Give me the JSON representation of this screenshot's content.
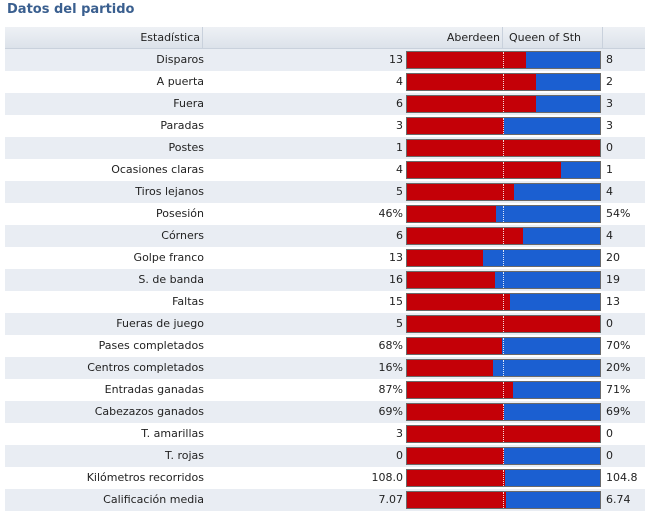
{
  "title": "Datos del partido",
  "header": {
    "stat": "Estadística",
    "home": "Aberdeen",
    "away": "Queen of Sth"
  },
  "colors": {
    "home": "#c40007",
    "away": "#1b5fd1"
  },
  "rows": [
    {
      "label": "Disparos",
      "home": "13",
      "away": "8",
      "home_share": 0.619
    },
    {
      "label": "A puerta",
      "home": "4",
      "away": "2",
      "home_share": 0.667
    },
    {
      "label": "Fuera",
      "home": "6",
      "away": "3",
      "home_share": 0.667
    },
    {
      "label": "Paradas",
      "home": "3",
      "away": "3",
      "home_share": 0.5
    },
    {
      "label": "Postes",
      "home": "1",
      "away": "0",
      "home_share": 1.0
    },
    {
      "label": "Ocasiones claras",
      "home": "4",
      "away": "1",
      "home_share": 0.8
    },
    {
      "label": "Tiros lejanos",
      "home": "5",
      "away": "4",
      "home_share": 0.556
    },
    {
      "label": "Posesión",
      "home": "46%",
      "away": "54%",
      "home_share": 0.46
    },
    {
      "label": "Córners",
      "home": "6",
      "away": "4",
      "home_share": 0.6
    },
    {
      "label": "Golpe franco",
      "home": "13",
      "away": "20",
      "home_share": 0.394
    },
    {
      "label": "S. de banda",
      "home": "16",
      "away": "19",
      "home_share": 0.457
    },
    {
      "label": "Faltas",
      "home": "15",
      "away": "13",
      "home_share": 0.536
    },
    {
      "label": "Fueras de juego",
      "home": "5",
      "away": "0",
      "home_share": 1.0
    },
    {
      "label": "Pases completados",
      "home": "68%",
      "away": "70%",
      "home_share": 0.493
    },
    {
      "label": "Centros completados",
      "home": "16%",
      "away": "20%",
      "home_share": 0.444
    },
    {
      "label": "Entradas ganadas",
      "home": "87%",
      "away": "71%",
      "home_share": 0.551
    },
    {
      "label": "Cabezazos ganados",
      "home": "69%",
      "away": "69%",
      "home_share": 0.5
    },
    {
      "label": "T. amarillas",
      "home": "3",
      "away": "0",
      "home_share": 1.0
    },
    {
      "label": "T. rojas",
      "home": "0",
      "away": "0",
      "home_share": 0.5
    },
    {
      "label": "Kilómetros recorridos",
      "home": "108.0",
      "away": "104.8",
      "home_share": 0.508
    },
    {
      "label": "Calificación media",
      "home": "7.07",
      "away": "6.74",
      "home_share": 0.512
    }
  ]
}
